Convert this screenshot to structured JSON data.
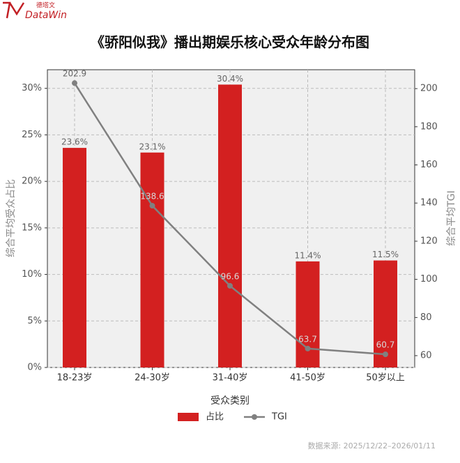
{
  "logo": {
    "brand": "DataWin",
    "brand_cn": "德塔文"
  },
  "source": "数据来源: 2025/12/22–2026/01/11",
  "chart_data": {
    "type": "bar-line",
    "title": "《骄阳似我》播出期娱乐核心受众年龄分布图",
    "x_label": "受众类别",
    "y_label": "综合平均受众占比",
    "y2_label": "综合平均TGI",
    "categories": [
      "18-23岁",
      "24-30岁",
      "31-40岁",
      "41-50岁",
      "50岁以上"
    ],
    "series": [
      {
        "name": "占比",
        "type": "bar",
        "color": "#d32020",
        "values": [
          23.6,
          23.1,
          30.4,
          11.4,
          11.5
        ],
        "value_labels": [
          "23.6%",
          "23.1%",
          "30.4%",
          "11.4%",
          "11.5%"
        ]
      },
      {
        "name": "TGI",
        "type": "line",
        "axis": "y2",
        "color": "#808080",
        "values": [
          202.9,
          138.6,
          96.6,
          63.7,
          60.7
        ]
      }
    ],
    "ylim": [
      0,
      32
    ],
    "yticks": [
      {
        "value": 0,
        "label": "0%"
      },
      {
        "value": 5,
        "label": "5%"
      },
      {
        "value": 10,
        "label": "10%"
      },
      {
        "value": 15,
        "label": "15%"
      },
      {
        "value": 20,
        "label": "20%"
      },
      {
        "value": 25,
        "label": "25%"
      },
      {
        "value": 30,
        "label": "30%"
      }
    ],
    "y2lim": [
      53.8,
      209.9
    ],
    "y2ticks": [
      60,
      80,
      100,
      120,
      140,
      160,
      180,
      200
    ],
    "grid": true,
    "legend": "bottom"
  }
}
